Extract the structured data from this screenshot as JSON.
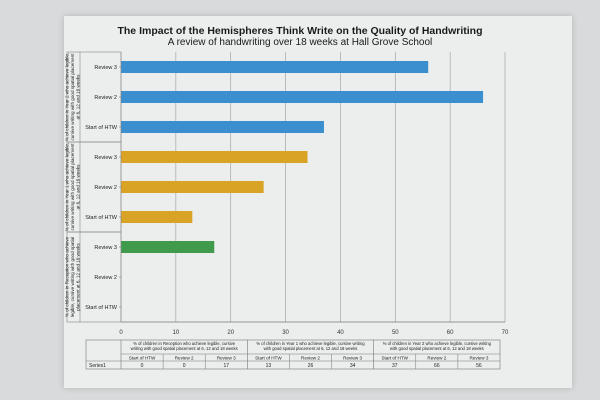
{
  "chart_data": {
    "type": "bar",
    "orientation": "horizontal",
    "title": "The Impact of the Hemispheres Think Write on the Quality of Handwriting",
    "subtitle": "A review of handwriting over 18 weeks at Hall Grove School",
    "xlim": [
      0,
      70
    ],
    "x_ticks": [
      "0",
      "10",
      "20",
      "30",
      "40",
      "50",
      "60",
      "70"
    ],
    "grid": true,
    "groups": [
      {
        "label": "% of children in Reception who achieve legible, cursive writing with good spatial placement at 6, 12 and 18 weeks",
        "table_header": "% of children in Reception who achieve legible, cursive writing with good spatial placement at 6, 12 and 18 weeks",
        "color": "#3f9a4b",
        "categories": [
          "Start of HTW",
          "Review 2",
          "Review 3"
        ],
        "values": [
          0,
          0,
          17
        ]
      },
      {
        "label": "% of children in Year 1 who achieve legible, cursive writing with good spatial placement at 6, 12 and 18 weeks",
        "table_header": "% of children in Year 1 who achieve legible, cursive writing with good spatial placement at 6, 12 and 18 weeks",
        "color": "#d9a325",
        "categories": [
          "Start of HTW",
          "Review 2",
          "Review 3"
        ],
        "values": [
          13,
          26,
          34
        ]
      },
      {
        "label": "% of children in Year 2 who achieve legible, cursive writing with good spatial placement at 6, 12 and 18 weeks",
        "table_header": "% of children in Year 2 who achieve legible, cursive writing with good spatial placement at 6, 12 and 18 weeks",
        "color": "#3b8fce",
        "categories": [
          "Start of HTW",
          "Review 2",
          "Review 3"
        ],
        "values": [
          37,
          66,
          56
        ]
      }
    ],
    "series_name": "Series1"
  }
}
